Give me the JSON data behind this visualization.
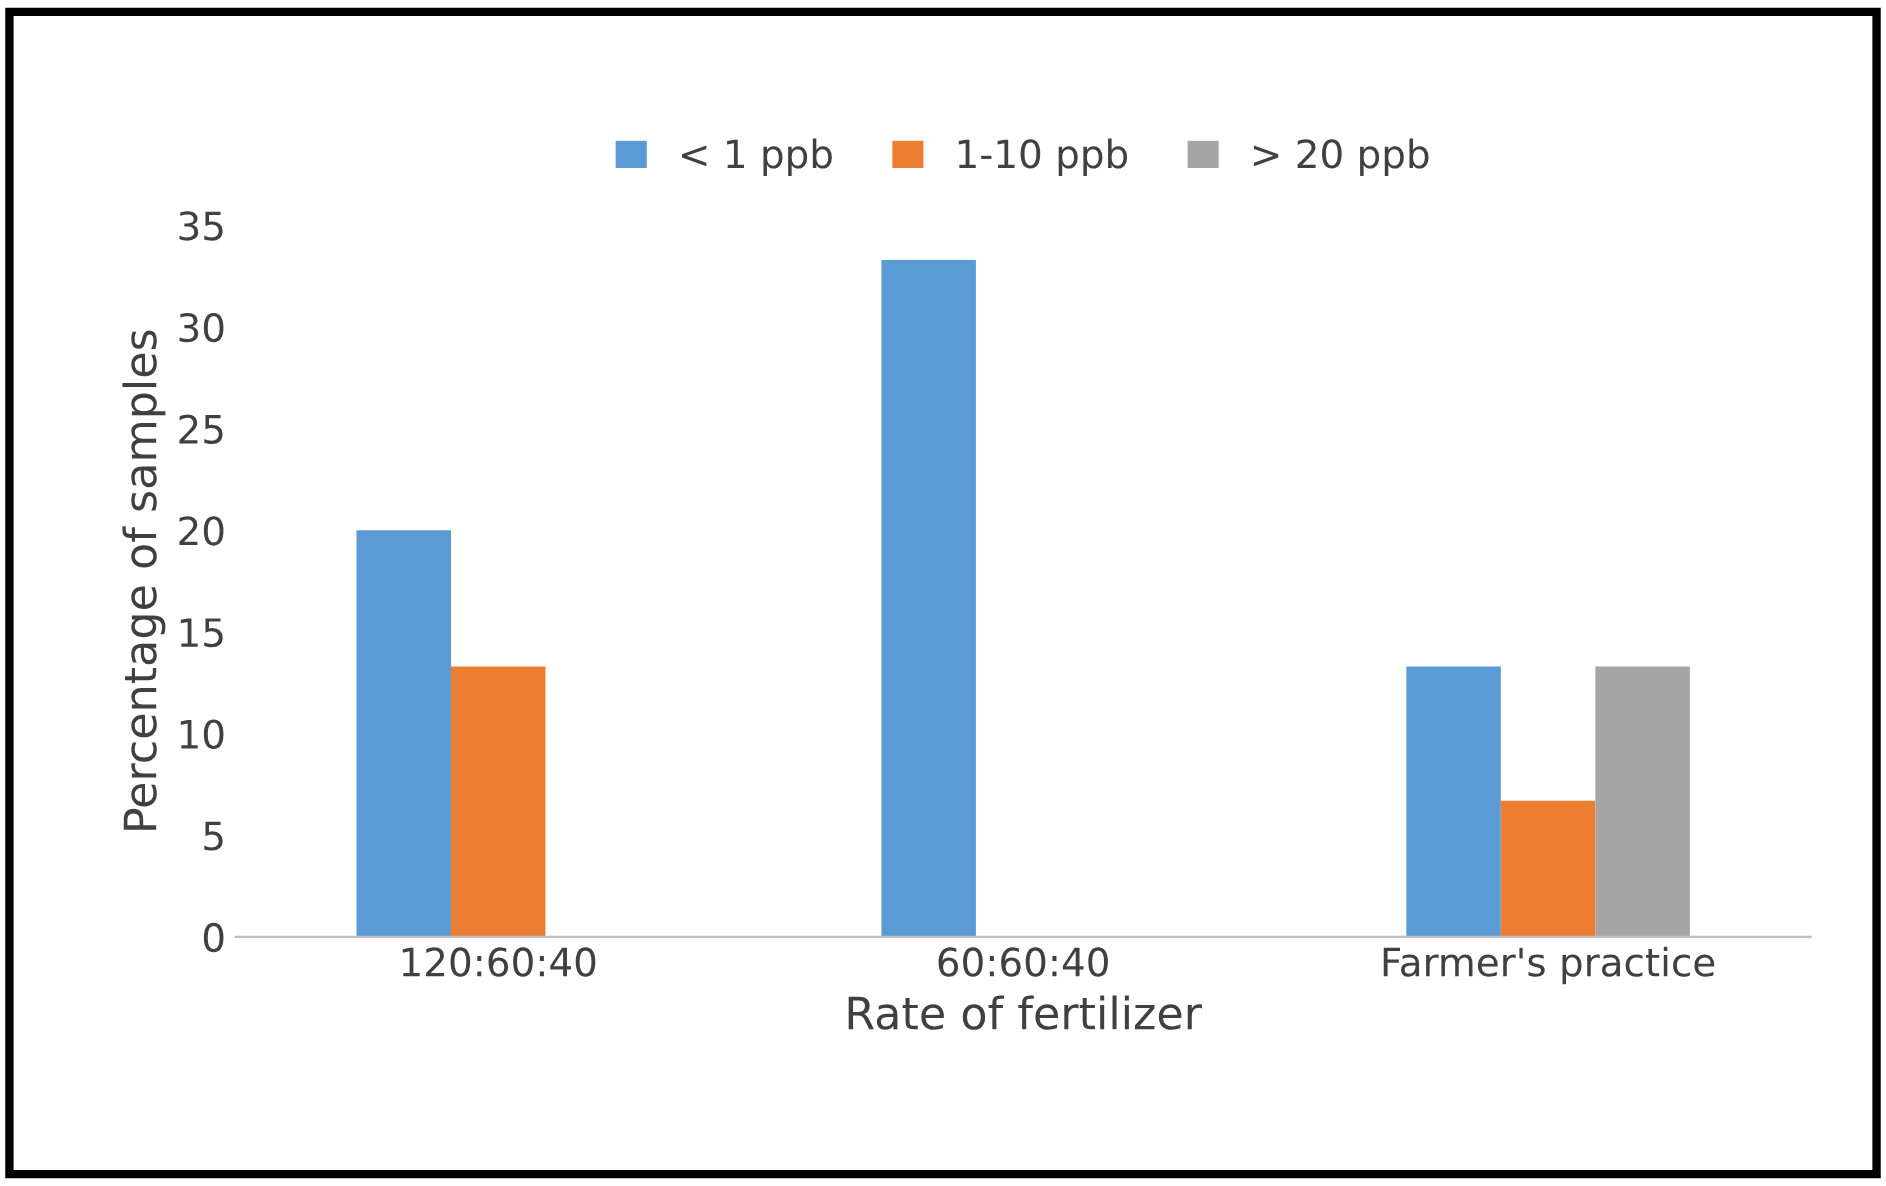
{
  "chart_data": {
    "type": "bar",
    "xlabel": "Rate of fertilizer",
    "ylabel": "Percentage of samples",
    "categories": [
      "120:60:40",
      "60:60:40",
      "Farmer's practice"
    ],
    "series": [
      {
        "name": "< 1 ppb",
        "color": "#5b9bd5",
        "values": [
          20,
          33.3,
          13.3
        ]
      },
      {
        "name": "1-10 ppb",
        "color": "#ed7d31",
        "values": [
          13.3,
          0,
          6.7
        ]
      },
      {
        "name": "> 20 ppb",
        "color": "#a5a5a5",
        "values": [
          0,
          0,
          13.3
        ]
      }
    ],
    "ylim": [
      0,
      35
    ],
    "yticks": [
      0,
      5,
      10,
      15,
      20,
      25,
      30,
      35
    ],
    "grid": false,
    "legend": "top"
  }
}
